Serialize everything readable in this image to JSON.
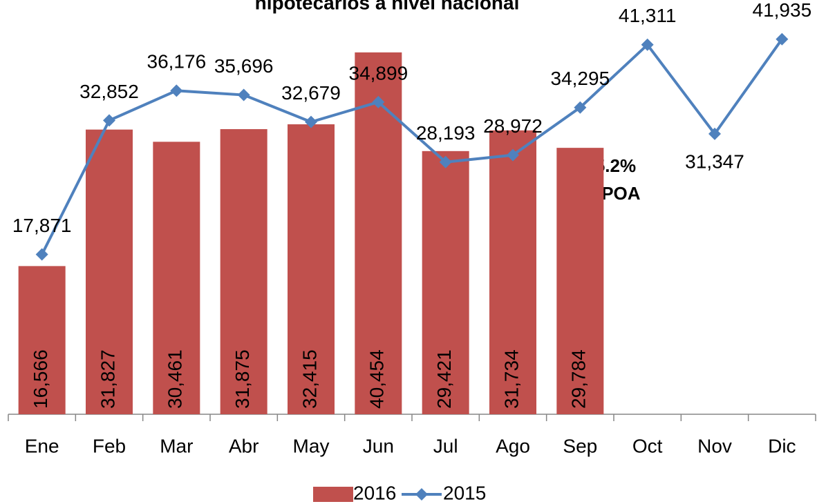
{
  "chart_data": {
    "type": "bar_line",
    "title": "hipotecarios a nivel nacional",
    "categories": [
      "Ene",
      "Feb",
      "Mar",
      "Abr",
      "May",
      "Jun",
      "Jul",
      "Ago",
      "Sep",
      "Oct",
      "Nov",
      "Dic"
    ],
    "series": [
      {
        "name": "2016",
        "type": "bar",
        "color": "#c0504d",
        "values": [
          16566,
          31827,
          30461,
          31875,
          32415,
          40454,
          29421,
          31734,
          29784,
          null,
          null,
          null
        ],
        "value_labels": [
          "16,566",
          "31,827",
          "30,461",
          "31,875",
          "32,415",
          "40,454",
          "29,421",
          "31,734",
          "29,784",
          null,
          null,
          null
        ]
      },
      {
        "name": "2015",
        "type": "line",
        "color": "#4f81bd",
        "values": [
          17871,
          32852,
          36176,
          35696,
          32679,
          34899,
          28193,
          28972,
          34295,
          41311,
          31347,
          41935
        ],
        "value_labels": [
          "17,871",
          "32,852",
          "36,176",
          "35,696",
          "32,679",
          "34,899",
          "28,193",
          "28,972",
          "34,295",
          "41,311",
          "31,347",
          "41,935"
        ]
      }
    ],
    "annotations": [
      "105.2%",
      "del POA"
    ],
    "ylim": [
      0,
      45000
    ],
    "legend": "bottom"
  }
}
